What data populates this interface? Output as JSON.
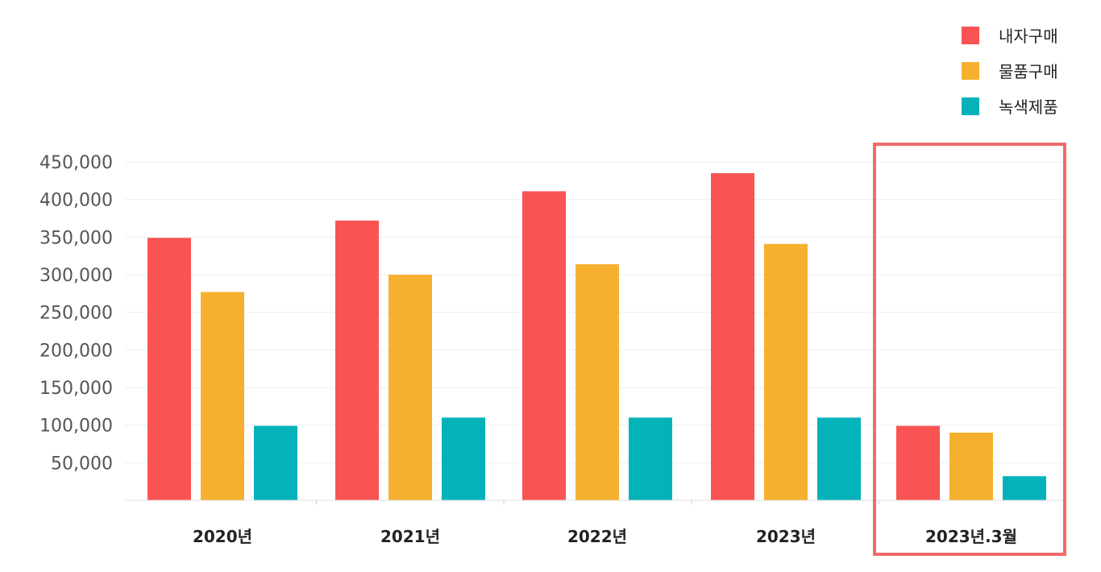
{
  "chart_data": {
    "type": "bar",
    "categories": [
      "2020년",
      "2021년",
      "2022년",
      "2023년",
      "2023년.3월"
    ],
    "series": [
      {
        "name": "내자구매",
        "color": "#f95353",
        "values": [
          349000,
          372000,
          411000,
          435000,
          99000
        ]
      },
      {
        "name": "물품구매",
        "color": "#f6b030",
        "values": [
          277000,
          300000,
          314000,
          341000,
          90000
        ]
      },
      {
        "name": "녹색제품",
        "color": "#04b2b9",
        "values": [
          99000,
          110000,
          110000,
          110000,
          32000
        ]
      }
    ],
    "yticks": [
      "50,000",
      "100,000",
      "150,000",
      "200,000",
      "250,000",
      "300,000",
      "350,000",
      "400,000",
      "450,000"
    ],
    "ylim": [
      0,
      450000
    ],
    "grid": true,
    "legend_position": "top-right",
    "highlight": {
      "category_index": 4,
      "color": "#f26b6b"
    }
  }
}
